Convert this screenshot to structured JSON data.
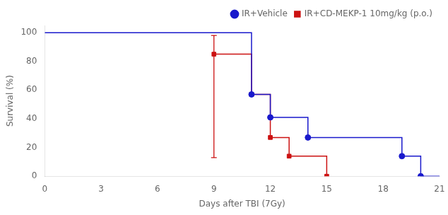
{
  "chart_data": {
    "type": "line",
    "xlabel": "Days after TBI (7Gy)",
    "ylabel": "Survival (%)",
    "xlim": [
      0,
      21
    ],
    "ylim": [
      0,
      105
    ],
    "xticks": [
      0,
      3,
      6,
      9,
      12,
      15,
      18,
      21
    ],
    "yticks": [
      0,
      20,
      40,
      60,
      80,
      100
    ],
    "grid": false,
    "legend": "upper right",
    "series": [
      {
        "name": "IR+Vehicle",
        "color": "#1919cc",
        "marker": "circle",
        "line_style": "solid",
        "x": [
          0,
          11,
          11,
          12,
          12,
          14,
          14,
          19,
          19,
          20,
          20,
          21
        ],
        "values": [
          100,
          100,
          57,
          57,
          41,
          41,
          27,
          27,
          14,
          14,
          0,
          0
        ],
        "markers": {
          "x": [
            11,
            12,
            14,
            19,
            20
          ],
          "values": [
            57,
            41,
            27,
            14,
            0
          ]
        }
      },
      {
        "name": "IR+CD-MEKP-1 10mg/kg (p.o.)",
        "color": "#cc1111",
        "marker": "square",
        "line_style": "solid",
        "x": [
          9,
          11,
          11,
          12,
          12,
          13,
          13,
          15,
          15
        ],
        "values": [
          85,
          85,
          57,
          57,
          27,
          27,
          14,
          14,
          0
        ],
        "markers": {
          "x": [
            9,
            11,
            12,
            13,
            15
          ],
          "values": [
            85,
            57,
            27,
            14,
            0
          ]
        },
        "error_bar": {
          "x": 9,
          "value": 85,
          "low": 13,
          "high": 98
        }
      }
    ]
  }
}
